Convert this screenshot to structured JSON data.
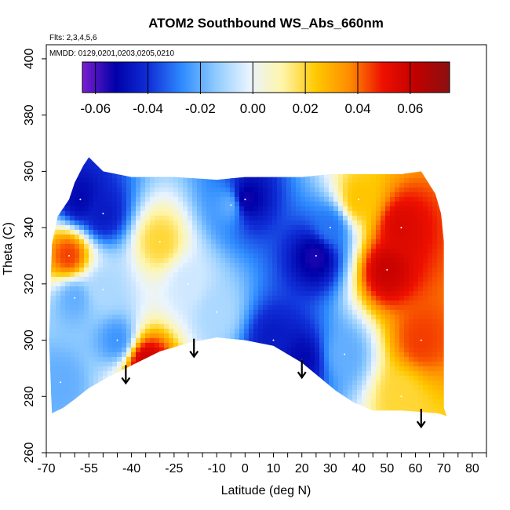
{
  "chart_data": {
    "type": "heatmap",
    "title": "ATOM2 Southbound WS_Abs_660nm",
    "subtitle_flights": "Flts: 2,3,4,5,6",
    "subtitle_dates": "MMDD: 0129,0201,0203,0205,0210",
    "xlabel": "Latitude (deg N)",
    "ylabel": "Theta (C)",
    "xlim": [
      -70,
      85
    ],
    "ylim": [
      260,
      405
    ],
    "x_ticks": [
      -70,
      -55,
      -40,
      -25,
      -10,
      0,
      10,
      20,
      30,
      40,
      50,
      60,
      70,
      80
    ],
    "x_tick_labels": [
      "-70",
      "-55",
      "-40",
      "-25",
      "-10",
      "0",
      "10",
      "20",
      "30",
      "40",
      "50",
      "60",
      "70",
      "80"
    ],
    "y_ticks": [
      260,
      280,
      300,
      320,
      340,
      360,
      380,
      400
    ],
    "y_tick_labels": [
      "260",
      "280",
      "300",
      "320",
      "340",
      "360",
      "380",
      "400"
    ],
    "colorbar": {
      "range": [
        -0.065,
        0.075
      ],
      "ticks": [
        -0.06,
        -0.04,
        -0.02,
        0.0,
        0.02,
        0.04,
        0.06
      ],
      "tick_labels": [
        "-0.06",
        "-0.04",
        "-0.02",
        "0.00",
        "0.02",
        "0.04",
        "0.06"
      ],
      "colors": [
        "#7b1fd0",
        "#0000a8",
        "#1030d8",
        "#2f8cff",
        "#8fcbff",
        "#e9f4ff",
        "#fff5a8",
        "#ffc800",
        "#ff8c00",
        "#ee1000",
        "#c00000",
        "#8b1010"
      ]
    },
    "grid": false,
    "legend_position": "top (horizontal colorbar)",
    "arrows_latitude": [
      -42,
      -18,
      20,
      62
    ],
    "field_samples": [
      {
        "lat": -58,
        "theta": 350,
        "value": -0.05
      },
      {
        "lat": -50,
        "theta": 345,
        "value": -0.045
      },
      {
        "lat": -62,
        "theta": 330,
        "value": 0.045
      },
      {
        "lat": -60,
        "theta": 315,
        "value": -0.02
      },
      {
        "lat": -50,
        "theta": 318,
        "value": -0.01
      },
      {
        "lat": -45,
        "theta": 300,
        "value": -0.025
      },
      {
        "lat": -35,
        "theta": 292,
        "value": 0.06
      },
      {
        "lat": -30,
        "theta": 335,
        "value": 0.02
      },
      {
        "lat": -20,
        "theta": 320,
        "value": -0.005
      },
      {
        "lat": -5,
        "theta": 348,
        "value": -0.02
      },
      {
        "lat": 0,
        "theta": 350,
        "value": -0.055
      },
      {
        "lat": 10,
        "theta": 300,
        "value": -0.045
      },
      {
        "lat": 20,
        "theta": 293,
        "value": -0.05
      },
      {
        "lat": 25,
        "theta": 330,
        "value": -0.055
      },
      {
        "lat": 30,
        "theta": 340,
        "value": -0.03
      },
      {
        "lat": 40,
        "theta": 350,
        "value": 0.025
      },
      {
        "lat": 50,
        "theta": 325,
        "value": 0.06
      },
      {
        "lat": 55,
        "theta": 340,
        "value": 0.055
      },
      {
        "lat": 62,
        "theta": 300,
        "value": 0.045
      },
      {
        "lat": 55,
        "theta": 280,
        "value": 0.02
      },
      {
        "lat": 35,
        "theta": 295,
        "value": -0.02
      },
      {
        "lat": -10,
        "theta": 310,
        "value": -0.01
      },
      {
        "lat": -65,
        "theta": 285,
        "value": -0.02
      }
    ]
  }
}
